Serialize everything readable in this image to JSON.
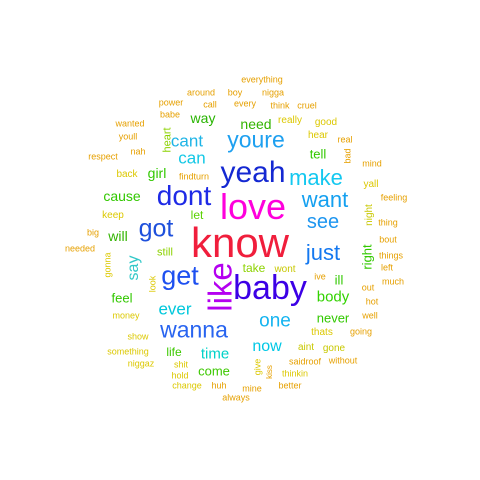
{
  "words": [
    {
      "text": "know",
      "color": "#f01e3c",
      "weight": 1
    },
    {
      "text": "love",
      "color": "#ff00dc",
      "weight": 0.8
    },
    {
      "text": "baby",
      "color": "#3c00e6",
      "weight": 0.78
    },
    {
      "text": "like",
      "color": "#b400f0",
      "weight": 0.73
    },
    {
      "text": "yeah",
      "color": "#1428d2",
      "weight": 0.66
    },
    {
      "text": "dont",
      "color": "#1e2ae6",
      "weight": 0.62
    },
    {
      "text": "get",
      "color": "#1e50f0",
      "weight": 0.6
    },
    {
      "text": "got",
      "color": "#1e50dc",
      "weight": 0.56
    },
    {
      "text": "youre",
      "color": "#1ea0f0",
      "weight": 0.52
    },
    {
      "text": "wanna",
      "color": "#2864f0",
      "weight": 0.52
    },
    {
      "text": "make",
      "color": "#14c8f0",
      "weight": 0.48
    },
    {
      "text": "just",
      "color": "#1478f0",
      "weight": 0.48
    },
    {
      "text": "want",
      "color": "#14a0f0",
      "weight": 0.48
    },
    {
      "text": "see",
      "color": "#1e96f0",
      "weight": 0.44
    },
    {
      "text": "one",
      "color": "#14b4f0",
      "weight": 0.43
    },
    {
      "text": "cant",
      "color": "#1eb4e6",
      "weight": 0.38
    },
    {
      "text": "can",
      "color": "#14c8e6",
      "weight": 0.38
    },
    {
      "text": "ever",
      "color": "#00c8dc",
      "weight": 0.38
    },
    {
      "text": "say",
      "color": "#32c8c8",
      "weight": 0.36
    },
    {
      "text": "now",
      "color": "#00c8e6",
      "weight": 0.36
    },
    {
      "text": "time",
      "color": "#00d2c8",
      "weight": 0.33
    },
    {
      "text": "body",
      "color": "#32d200",
      "weight": 0.33
    },
    {
      "text": "way",
      "color": "#28b400",
      "weight": 0.3
    },
    {
      "text": "need",
      "color": "#32b400",
      "weight": 0.3
    },
    {
      "text": "girl",
      "color": "#32c800",
      "weight": 0.3
    },
    {
      "text": "cause",
      "color": "#32c800",
      "weight": 0.3
    },
    {
      "text": "will",
      "color": "#32b400",
      "weight": 0.3
    },
    {
      "text": "tell",
      "color": "#32c800",
      "weight": 0.28
    },
    {
      "text": "feel",
      "color": "#32c800",
      "weight": 0.28
    },
    {
      "text": "never",
      "color": "#32c800",
      "weight": 0.28
    },
    {
      "text": "right",
      "color": "#32c800",
      "weight": 0.28
    },
    {
      "text": "ill",
      "color": "#32c800",
      "weight": 0.28
    },
    {
      "text": "come",
      "color": "#3cc800",
      "weight": 0.28
    },
    {
      "text": "life",
      "color": "#3cc800",
      "weight": 0.27
    },
    {
      "text": "let",
      "color": "#5ad200",
      "weight": 0.25
    },
    {
      "text": "take",
      "color": "#8cd200",
      "weight": 0.25
    },
    {
      "text": "still",
      "color": "#8cd200",
      "weight": 0.23
    },
    {
      "text": "heart",
      "color": "#8cd200",
      "weight": 0.23
    },
    {
      "text": "aint",
      "color": "#c8c800",
      "weight": 0.22
    },
    {
      "text": "wont",
      "color": "#c8c800",
      "weight": 0.22
    },
    {
      "text": "night",
      "color": "#c8c800",
      "weight": 0.22
    },
    {
      "text": "gone",
      "color": "#c8c800",
      "weight": 0.2
    },
    {
      "text": "back",
      "color": "#dcc800",
      "weight": 0.2
    },
    {
      "text": "keep",
      "color": "#dcc800",
      "weight": 0.2
    },
    {
      "text": "really",
      "color": "#dcc800",
      "weight": 0.2
    },
    {
      "text": "good",
      "color": "#dcc800",
      "weight": 0.2
    },
    {
      "text": "hear",
      "color": "#dcc800",
      "weight": 0.2
    },
    {
      "text": "yall",
      "color": "#dcc800",
      "weight": 0.2
    },
    {
      "text": "thats",
      "color": "#dcc800",
      "weight": 0.2
    },
    {
      "text": "money",
      "color": "#dcc800",
      "weight": 0.18
    },
    {
      "text": "show",
      "color": "#dcc800",
      "weight": 0.18
    },
    {
      "text": "something",
      "color": "#dcc800",
      "weight": 0.18
    },
    {
      "text": "niggaz",
      "color": "#dcc800",
      "weight": 0.18
    },
    {
      "text": "shit",
      "color": "#dcc800",
      "weight": 0.18
    },
    {
      "text": "hold",
      "color": "#dcc800",
      "weight": 0.18
    },
    {
      "text": "change",
      "color": "#dcc800",
      "weight": 0.18
    },
    {
      "text": "give",
      "color": "#dcc800",
      "weight": 0.18
    },
    {
      "text": "thinkin",
      "color": "#dcc800",
      "weight": 0.18
    },
    {
      "text": "gonna",
      "color": "#dcc800",
      "weight": 0.18
    },
    {
      "text": "look",
      "color": "#dcc800",
      "weight": 0.18
    },
    {
      "text": "real",
      "color": "#e6a000",
      "weight": 0.18
    },
    {
      "text": "bad",
      "color": "#e6a000",
      "weight": 0.16
    },
    {
      "text": "mind",
      "color": "#e6a000",
      "weight": 0.16
    },
    {
      "text": "feeling",
      "color": "#e6a000",
      "weight": 0.16
    },
    {
      "text": "thing",
      "color": "#e6a000",
      "weight": 0.16
    },
    {
      "text": "bout",
      "color": "#e6a000",
      "weight": 0.16
    },
    {
      "text": "things",
      "color": "#e6a000",
      "weight": 0.16
    },
    {
      "text": "left",
      "color": "#e6a000",
      "weight": 0.16
    },
    {
      "text": "much",
      "color": "#e6a000",
      "weight": 0.16
    },
    {
      "text": "out",
      "color": "#e6a000",
      "weight": 0.16
    },
    {
      "text": "hot",
      "color": "#e6a000",
      "weight": 0.16
    },
    {
      "text": "well",
      "color": "#e6a000",
      "weight": 0.16
    },
    {
      "text": "going",
      "color": "#e6a000",
      "weight": 0.16
    },
    {
      "text": "ive",
      "color": "#e6a000",
      "weight": 0.16
    },
    {
      "text": "without",
      "color": "#e6a000",
      "weight": 0.16
    },
    {
      "text": "saidroof",
      "color": "#e6a000",
      "weight": 0.16
    },
    {
      "text": "better",
      "color": "#e6a000",
      "weight": 0.16
    },
    {
      "text": "mine",
      "color": "#e6a000",
      "weight": 0.16
    },
    {
      "text": "always",
      "color": "#e6a000",
      "weight": 0.16
    },
    {
      "text": "huh",
      "color": "#e6a000",
      "weight": 0.16
    },
    {
      "text": "kiss",
      "color": "#e6a000",
      "weight": 0.14
    },
    {
      "text": "everything",
      "color": "#e6a000",
      "weight": 0.16
    },
    {
      "text": "boy",
      "color": "#e6a000",
      "weight": 0.16
    },
    {
      "text": "around",
      "color": "#e6a000",
      "weight": 0.16
    },
    {
      "text": "nigga",
      "color": "#e6a000",
      "weight": 0.16
    },
    {
      "text": "power",
      "color": "#e6a000",
      "weight": 0.16
    },
    {
      "text": "call",
      "color": "#e6a000",
      "weight": 0.16
    },
    {
      "text": "every",
      "color": "#e6a000",
      "weight": 0.16
    },
    {
      "text": "think",
      "color": "#e6a000",
      "weight": 0.16
    },
    {
      "text": "cruel",
      "color": "#e6a000",
      "weight": 0.16
    },
    {
      "text": "babe",
      "color": "#e6a000",
      "weight": 0.16
    },
    {
      "text": "wanted",
      "color": "#e6a000",
      "weight": 0.16
    },
    {
      "text": "youll",
      "color": "#e6a000",
      "weight": 0.16
    },
    {
      "text": "nah",
      "color": "#e6a000",
      "weight": 0.16
    },
    {
      "text": "respect",
      "color": "#e6a000",
      "weight": 0.16
    },
    {
      "text": "findturn",
      "color": "#e6a000",
      "weight": 0.16
    },
    {
      "text": "big",
      "color": "#e6a000",
      "weight": 0.16
    },
    {
      "text": "needed",
      "color": "#e6a000",
      "weight": 0.16
    }
  ]
}
